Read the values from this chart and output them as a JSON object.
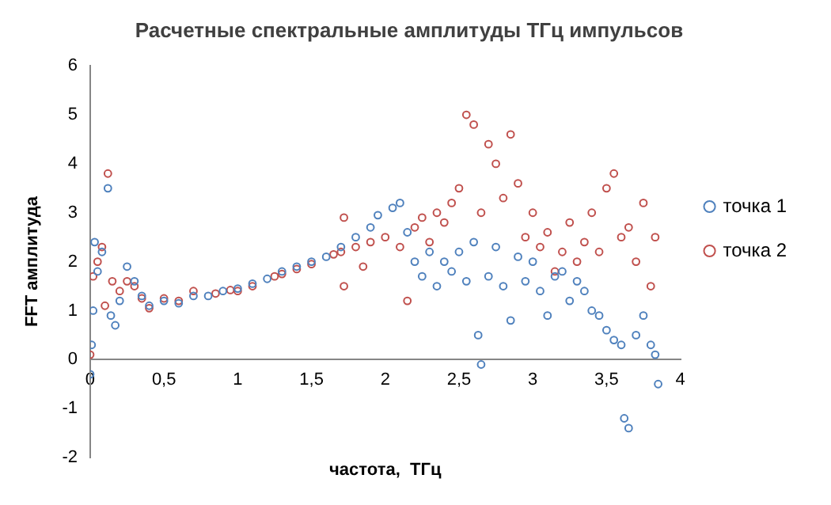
{
  "chart_data": {
    "type": "scatter",
    "title": "Расчетные спектральные амплитуды ТГц импульсов",
    "xlabel": "частота,  ТГц",
    "ylabel": "FFT амплитуда",
    "xlim": [
      0,
      4
    ],
    "xticks": [
      0,
      {
        "value": 0.5,
        "label": "0,5"
      },
      1,
      {
        "value": 1.5,
        "label": "1,5"
      },
      2,
      {
        "value": 2.5,
        "label": "2,5"
      },
      3,
      {
        "value": 3.5,
        "label": "3,5"
      },
      4
    ],
    "ylim": [
      -2,
      6
    ],
    "yticks": [
      -2,
      -1,
      0,
      1,
      2,
      3,
      4,
      5,
      6
    ],
    "grid": false,
    "legend": "right",
    "marker": "circle",
    "series": [
      {
        "name": "точка 1",
        "color": "#4f81bd",
        "x": [
          0,
          0.01,
          0.02,
          0.03,
          0.05,
          0.08,
          0.12,
          0.14,
          0.17,
          0.2,
          0.25,
          0.3,
          0.35,
          0.4,
          0.5,
          0.6,
          0.7,
          0.8,
          0.9,
          1.0,
          1.1,
          1.2,
          1.3,
          1.4,
          1.5,
          1.6,
          1.7,
          1.8,
          1.9,
          1.95,
          2.05,
          2.1,
          2.15,
          2.2,
          2.25,
          2.3,
          2.35,
          2.4,
          2.45,
          2.5,
          2.55,
          2.6,
          2.63,
          2.65,
          2.7,
          2.75,
          2.8,
          2.85,
          2.9,
          2.95,
          3.0,
          3.05,
          3.1,
          3.15,
          3.2,
          3.25,
          3.3,
          3.35,
          3.4,
          3.45,
          3.5,
          3.55,
          3.6,
          3.62,
          3.65,
          3.7,
          3.75,
          3.8,
          3.83,
          3.85
        ],
        "values": [
          -0.3,
          0.3,
          1.0,
          2.4,
          1.8,
          2.2,
          3.5,
          0.9,
          0.7,
          1.2,
          1.9,
          1.6,
          1.3,
          1.1,
          1.2,
          1.15,
          1.3,
          1.3,
          1.4,
          1.45,
          1.55,
          1.65,
          1.8,
          1.9,
          2.0,
          2.1,
          2.3,
          2.5,
          2.7,
          2.95,
          3.1,
          3.2,
          2.6,
          2.0,
          1.7,
          2.2,
          1.5,
          2.0,
          1.8,
          2.2,
          1.6,
          2.4,
          0.5,
          -0.1,
          1.7,
          2.3,
          1.5,
          0.8,
          2.1,
          1.6,
          2.0,
          1.4,
          0.9,
          1.7,
          1.8,
          1.2,
          1.6,
          1.4,
          1.0,
          0.9,
          0.6,
          0.4,
          0.3,
          -1.2,
          -1.4,
          0.5,
          0.9,
          0.3,
          0.1,
          -0.5
        ]
      },
      {
        "name": "точка 2",
        "color": "#c0504d",
        "x": [
          0,
          0.02,
          0.05,
          0.08,
          0.1,
          0.12,
          0.15,
          0.2,
          0.25,
          0.3,
          0.35,
          0.4,
          0.5,
          0.6,
          0.7,
          0.85,
          0.95,
          1.0,
          1.1,
          1.25,
          1.3,
          1.4,
          1.5,
          1.65,
          1.7,
          1.72,
          1.72,
          1.8,
          1.85,
          1.9,
          2.0,
          2.1,
          2.15,
          2.2,
          2.25,
          2.3,
          2.35,
          2.4,
          2.45,
          2.5,
          2.55,
          2.6,
          2.65,
          2.7,
          2.75,
          2.8,
          2.85,
          2.9,
          2.95,
          3.0,
          3.05,
          3.1,
          3.15,
          3.2,
          3.25,
          3.3,
          3.35,
          3.4,
          3.45,
          3.5,
          3.55,
          3.6,
          3.65,
          3.7,
          3.75,
          3.8,
          3.83
        ],
        "values": [
          0.1,
          1.7,
          2.0,
          2.3,
          1.1,
          3.8,
          1.6,
          1.4,
          1.6,
          1.5,
          1.25,
          1.05,
          1.25,
          1.2,
          1.4,
          1.35,
          1.42,
          1.4,
          1.5,
          1.7,
          1.75,
          1.85,
          1.95,
          2.15,
          2.2,
          2.9,
          1.5,
          2.3,
          1.9,
          2.4,
          2.5,
          2.3,
          1.2,
          2.7,
          2.9,
          2.4,
          3.0,
          2.8,
          3.2,
          3.5,
          5.0,
          4.8,
          3.0,
          4.4,
          4.0,
          3.3,
          4.6,
          3.6,
          2.5,
          3.0,
          2.3,
          2.6,
          1.8,
          2.2,
          2.8,
          2.0,
          2.4,
          3.0,
          2.2,
          3.5,
          3.8,
          2.5,
          2.7,
          2.0,
          3.2,
          1.5,
          2.5
        ]
      }
    ]
  }
}
